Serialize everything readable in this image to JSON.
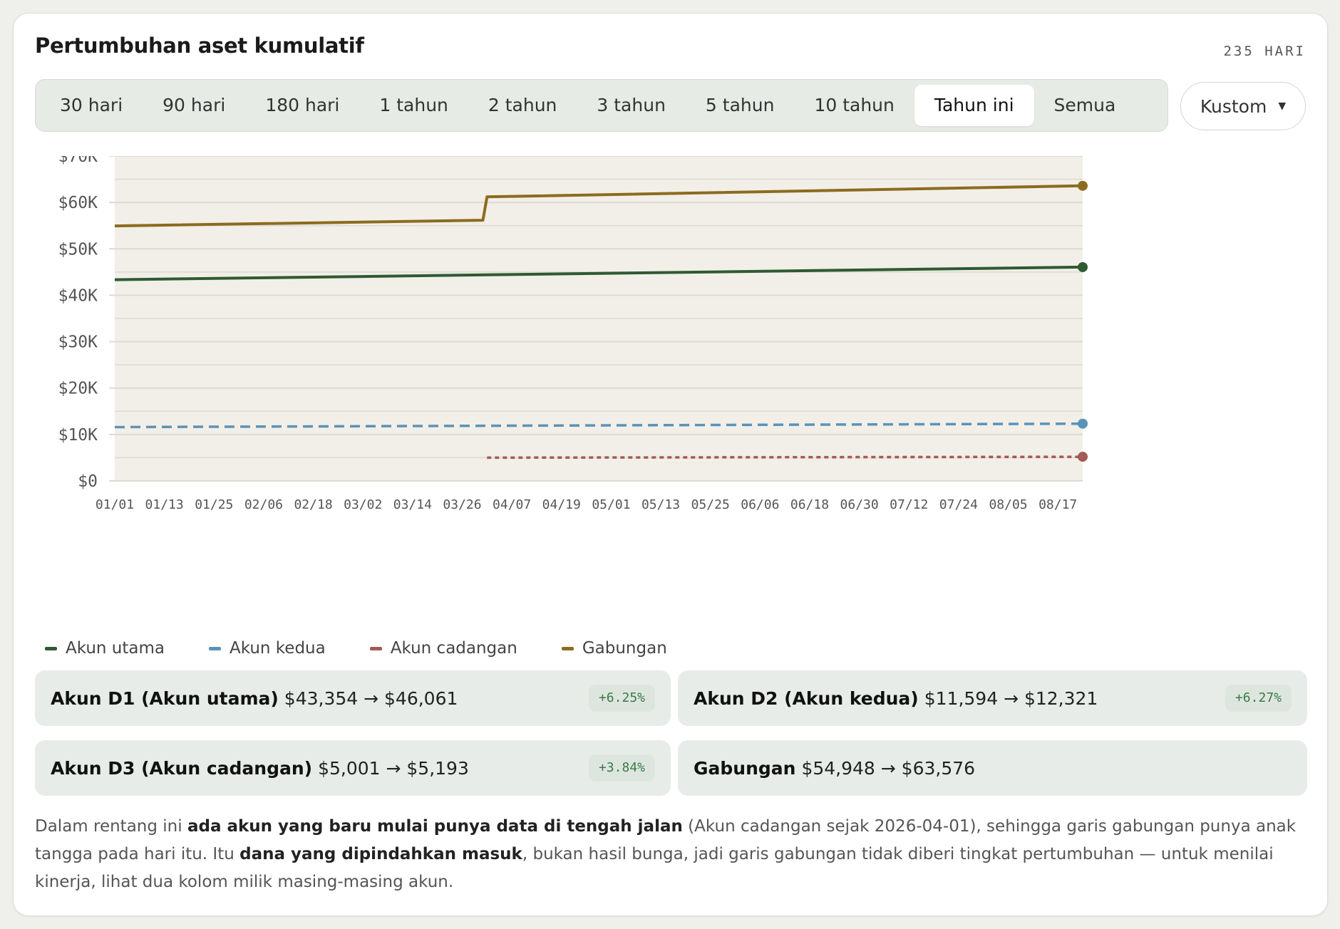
{
  "header": {
    "title": "Pertumbuhan aset kumulatif",
    "days": "235 HARI"
  },
  "ranges": {
    "tabs": [
      "30 hari",
      "90 hari",
      "180 hari",
      "1 tahun",
      "2 tahun",
      "3 tahun",
      "5 tahun",
      "10 tahun",
      "Tahun ini",
      "Semua"
    ],
    "active": "Tahun ini",
    "custom_label": "Kustom",
    "custom_caret": "▼"
  },
  "colors": {
    "main": "#2f5a32",
    "second": "#5a93b8",
    "reserve": "#a45a55",
    "combined": "#8b6b1f",
    "plot_bg": "#f2efe8",
    "grid": "#dcdad3"
  },
  "chart_data": {
    "type": "line",
    "x_ticks": [
      "01/01",
      "01/13",
      "01/25",
      "02/06",
      "02/18",
      "03/02",
      "03/14",
      "03/26",
      "04/07",
      "04/19",
      "05/01",
      "05/13",
      "05/25",
      "06/06",
      "06/18",
      "06/30",
      "07/12",
      "07/24",
      "08/05",
      "08/17"
    ],
    "y_ticks": [
      "$70K",
      "$60K",
      "$50K",
      "$40K",
      "$30K",
      "$20K",
      "$10K",
      "$0"
    ],
    "ylim": [
      0,
      70000
    ],
    "x_start": "01/01",
    "x_end": "08/23",
    "grid": true,
    "series": [
      {
        "name": "Akun utama",
        "color": "#2f5a32",
        "dash": "solid",
        "points": [
          [
            "01/01",
            43354
          ],
          [
            "08/23",
            46061
          ]
        ]
      },
      {
        "name": "Akun kedua",
        "color": "#5a93b8",
        "dash": "dashed",
        "points": [
          [
            "01/01",
            11594
          ],
          [
            "08/23",
            12321
          ]
        ]
      },
      {
        "name": "Akun cadangan",
        "color": "#a45a55",
        "dash": "dotted",
        "points": [
          [
            "04/01",
            5001
          ],
          [
            "08/23",
            5193
          ]
        ]
      },
      {
        "name": "Gabungan",
        "color": "#8b6b1f",
        "dash": "solid",
        "points": [
          [
            "01/01",
            54948
          ],
          [
            "03/31",
            56170
          ],
          [
            "04/01",
            61210
          ],
          [
            "08/23",
            63576
          ]
        ]
      }
    ]
  },
  "legend": [
    {
      "label": "Akun utama",
      "color": "#2f5a32"
    },
    {
      "label": "Akun kedua",
      "color": "#5a93b8"
    },
    {
      "label": "Akun cadangan",
      "color": "#a45a55"
    },
    {
      "label": "Gabungan",
      "color": "#8b6b1f"
    }
  ],
  "stats": [
    {
      "name": "Akun D1 (Akun utama)",
      "range": "$43,354 → $46,061",
      "pct": "+6.25%"
    },
    {
      "name": "Akun D2 (Akun kedua)",
      "range": "$11,594 → $12,321",
      "pct": "+6.27%"
    },
    {
      "name": "Akun D3 (Akun cadangan)",
      "range": "$5,001 → $5,193",
      "pct": "+3.84%"
    },
    {
      "name": "Gabungan",
      "range": "$54,948 → $63,576",
      "pct": ""
    }
  ],
  "note": {
    "p1": "Dalam rentang ini ",
    "b1": "ada akun yang baru mulai punya data di tengah jalan",
    "p2": " (Akun cadangan sejak 2026-04-01), sehingga garis gabungan punya anak tangga pada hari itu. Itu ",
    "b2": "dana yang dipindahkan masuk",
    "p3": ", bukan hasil bunga, jadi garis gabungan tidak diberi tingkat pertumbuhan — untuk menilai kinerja, lihat dua kolom milik masing-masing akun."
  }
}
